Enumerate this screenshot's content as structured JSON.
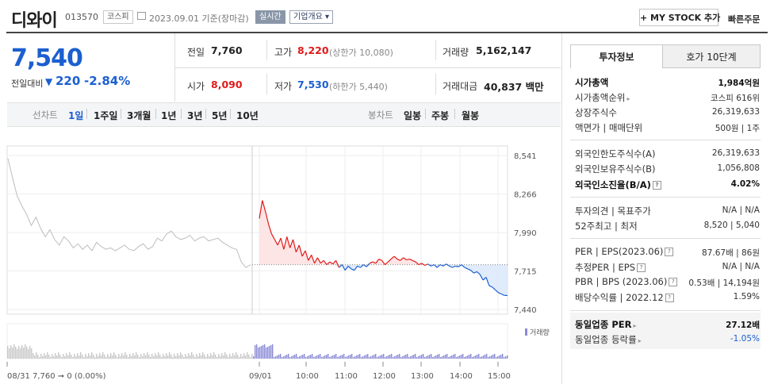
{
  "header": {
    "title": "디와이",
    "code": "013570",
    "market": "코스피",
    "date_text": "2023.09.01 기준(장마감)",
    "realtime": "실시간",
    "company_info": "기업개요 ▾",
    "mystock_button": "+ MY STOCK 추가",
    "quick_order": "빠른주문"
  },
  "price": {
    "current": "7,540",
    "change_label": "전일대비",
    "change": "220",
    "change_pct": "-2.84%"
  },
  "stats": {
    "prev_label": "전일",
    "prev": "7,760",
    "high_label": "고가",
    "high": "8,220",
    "upper_limit": "(상한가 10,080)",
    "volume_label": "거래량",
    "volume": "5,162,147",
    "open_label": "시가",
    "open": "8,090",
    "low_label": "저가",
    "low": "7,530",
    "lower_limit": "(하한가 5,440)",
    "amount_label": "거래대금",
    "amount": "40,837 백만"
  },
  "period_bar": {
    "line_label": "선차트",
    "periods": [
      "1일",
      "1주일",
      "3개월",
      "1년",
      "3년",
      "5년",
      "10년"
    ],
    "candle_label": "봉차트",
    "candles": [
      "일봉",
      "주봉",
      "월봉"
    ]
  },
  "chart_data": {
    "type": "line",
    "y_ticks": [
      "8,541",
      "8,266",
      "7,990",
      "7,715",
      "7,440"
    ],
    "x_ticks": [
      "08/31",
      "09/01",
      "10:00",
      "11:00",
      "12:00",
      "13:00",
      "14:00",
      "15:00"
    ],
    "volume_label": "거래량",
    "info_text": "08/31  7,760 ➞ 0 (0.00%)",
    "prev_close": 7760,
    "colors": {
      "up": "#e01a1a",
      "down": "#1c5fd0",
      "prev_day": "#bdbdbd"
    },
    "prev_day_series": [
      8520,
      8380,
      8250,
      8180,
      8120,
      8040,
      8100,
      8020,
      7960,
      8010,
      7940,
      7900,
      7960,
      7930,
      7880,
      7910,
      7870,
      7900,
      7860,
      7920,
      7890,
      7870,
      7880,
      7860,
      7880,
      7900,
      7870,
      7860,
      7890,
      7910,
      7870,
      7890,
      7950,
      7930,
      7980,
      8000,
      7960,
      7940,
      7950,
      7970,
      7930,
      7950,
      7960,
      7930,
      7940,
      7950,
      7920,
      7900,
      7880,
      7870,
      7780,
      7740,
      7760
    ],
    "today_series": [
      8090,
      8220,
      8140,
      8050,
      7980,
      7940,
      7900,
      7950,
      7870,
      7960,
      7880,
      7940,
      7850,
      7900,
      7820,
      7860,
      7790,
      7830,
      7770,
      7810,
      7770,
      7790,
      7760,
      7780,
      7765,
      7790,
      7740,
      7760,
      7720,
      7750,
      7730,
      7720,
      7750,
      7740,
      7760,
      7745,
      7770,
      7780,
      7770,
      7800,
      7790,
      7760,
      7780,
      7800,
      7820,
      7800,
      7790,
      7810,
      7795,
      7800,
      7790,
      7780,
      7760,
      7770,
      7755,
      7765,
      7750,
      7760,
      7740,
      7760,
      7750,
      7765,
      7750,
      7740,
      7750,
      7745,
      7760,
      7740,
      7730,
      7720,
      7700,
      7710,
      7690,
      7650,
      7670,
      7610,
      7600,
      7580,
      7560,
      7550,
      7540,
      7540
    ]
  },
  "right_panel": {
    "tabs": [
      "투자정보",
      "호가 10단계"
    ],
    "market_cap_label": "시가총액",
    "market_cap": "1,984억원",
    "cap_rank_label": "시가총액순위",
    "cap_rank": "코스피 616위",
    "shares_label": "상장주식수",
    "shares": "26,319,633",
    "par_label": "액면가 | 매매단위",
    "par": "500원 | 1주",
    "foreign_limit_label": "외국인한도주식수(A)",
    "foreign_limit": "26,319,633",
    "foreign_hold_label": "외국인보유주식수(B)",
    "foreign_hold": "1,056,808",
    "foreign_ratio_label": "외국인소진율(B/A)",
    "foreign_ratio": "4.02%",
    "opinion_label": "투자의견 | 목표주가",
    "opinion": "N/A | N/A",
    "w52_label": "52주최고 | 최저",
    "w52": "8,520 | 5,040",
    "per_label": "PER | EPS(2023.06)",
    "per": "87.67배 | 86원",
    "est_per_label": "추정PER | EPS",
    "est_per": "N/A | N/A",
    "pbr_label": "PBR | BPS (2023.06)",
    "pbr": "0.53배 | 14,194원",
    "div_label": "배당수익률 | 2022.12",
    "div": "1.59%",
    "ind_per_label": "동일업종 PER",
    "ind_per": "27.12배",
    "ind_rate_label": "동일업종 등락률",
    "ind_rate": "-1.05%"
  }
}
